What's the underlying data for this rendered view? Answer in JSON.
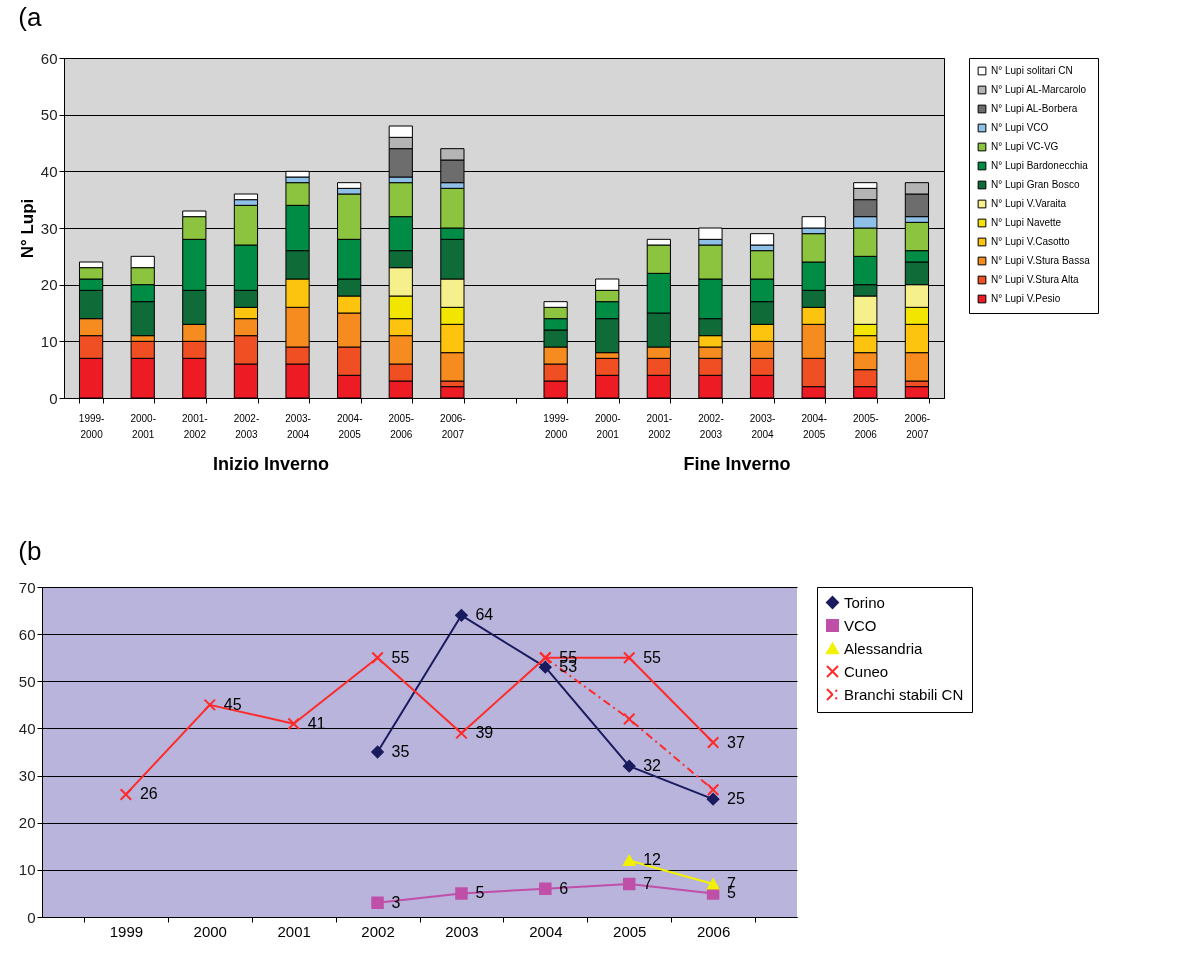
{
  "chart_data": [
    {
      "type": "bar",
      "title": "(a",
      "ylabel": "N° Lupi",
      "stacked": true,
      "legend": "right",
      "grid": "y",
      "ylim": [
        0,
        60
      ],
      "yticks": [
        0,
        10,
        20,
        30,
        40,
        50,
        60
      ],
      "categories": [
        "1999-2000",
        "2000-2001",
        "2001-2002",
        "2002-2003",
        "2003-2004",
        "2004-2005",
        "2005-2006",
        "2006-2007",
        null,
        "1999-2000",
        "2000-2001",
        "2001-2002",
        "2002-2003",
        "2003-2004",
        "2004-2005",
        "2005-2006",
        "2006-2007"
      ],
      "annotations": [
        "Inizio Inverno",
        "Fine Inverno"
      ],
      "series": [
        {
          "name": "N° Lupi V.Pesio",
          "color": "#ed1c24",
          "values": [
            7,
            7,
            7,
            6,
            6,
            4,
            3,
            2,
            null,
            3,
            4,
            4,
            4,
            4,
            2,
            2,
            2
          ]
        },
        {
          "name": "N° Lupi V.Stura Alta",
          "color": "#f04e23",
          "values": [
            4,
            3,
            3,
            5,
            3,
            5,
            3,
            1,
            null,
            3,
            3,
            3,
            3,
            3,
            5,
            3,
            1
          ]
        },
        {
          "name": "N° Lupi V.Stura Bassa",
          "color": "#f68b1f",
          "values": [
            3,
            1,
            3,
            3,
            7,
            6,
            5,
            5,
            null,
            3,
            1,
            2,
            2,
            3,
            6,
            3,
            5
          ]
        },
        {
          "name": "N° Lupi V.Casotto",
          "color": "#fcc30f",
          "values": [
            null,
            null,
            null,
            2,
            5,
            3,
            3,
            5,
            null,
            null,
            null,
            null,
            2,
            3,
            3,
            3,
            5
          ]
        },
        {
          "name": "N° Lupi Navette",
          "color": "#f2e600",
          "values": [
            null,
            null,
            null,
            null,
            null,
            null,
            4,
            3,
            null,
            null,
            null,
            null,
            null,
            null,
            null,
            2,
            3
          ]
        },
        {
          "name": "N° Lupi V.Varaita",
          "color": "#f5ef8c",
          "values": [
            null,
            null,
            null,
            null,
            null,
            null,
            5,
            5,
            null,
            null,
            null,
            null,
            null,
            null,
            null,
            5,
            4
          ]
        },
        {
          "name": "N° Lupi Gran Bosco",
          "color": "#0f6b38",
          "values": [
            5,
            6,
            6,
            3,
            5,
            3,
            3,
            7,
            null,
            3,
            6,
            6,
            3,
            4,
            3,
            2,
            4
          ]
        },
        {
          "name": "N° Lupi Bardonecchia",
          "color": "#008c45",
          "values": [
            2,
            3,
            9,
            8,
            8,
            7,
            6,
            2,
            null,
            2,
            3,
            7,
            7,
            4,
            5,
            5,
            2
          ]
        },
        {
          "name": "N° Lupi VC-VG",
          "color": "#8cc43f",
          "values": [
            2,
            3,
            4,
            7,
            4,
            8,
            6,
            7,
            null,
            2,
            2,
            5,
            6,
            5,
            5,
            5,
            5
          ]
        },
        {
          "name": "N° Lupi VCO",
          "color": "#8fc0e8",
          "values": [
            null,
            null,
            null,
            1,
            1,
            1,
            1,
            1,
            null,
            null,
            null,
            null,
            1,
            1,
            1,
            2,
            1
          ]
        },
        {
          "name": "N° Lupi AL-Borbera",
          "color": "#6d6d6d",
          "values": [
            null,
            null,
            null,
            null,
            null,
            null,
            5,
            4,
            null,
            null,
            null,
            null,
            null,
            null,
            null,
            3,
            4
          ]
        },
        {
          "name": "N° Lupi AL-Marcarolo",
          "color": "#b4b4b4",
          "values": [
            null,
            null,
            null,
            null,
            null,
            null,
            2,
            2,
            null,
            null,
            null,
            null,
            null,
            null,
            null,
            2,
            2
          ]
        },
        {
          "name": "N° Lupi solitari CN",
          "color": "#ffffff",
          "values": [
            1,
            2,
            1,
            1,
            1,
            1,
            2,
            null,
            null,
            1,
            2,
            1,
            2,
            2,
            2,
            1,
            null
          ]
        }
      ]
    },
    {
      "type": "line",
      "title": "(b",
      "legend": "right",
      "grid": "y",
      "ylim": [
        0,
        70
      ],
      "yticks": [
        0,
        10,
        20,
        30,
        40,
        50,
        60,
        70
      ],
      "categories": [
        "1999",
        "2000",
        "2001",
        "2002",
        "2003",
        "2004",
        "2005",
        "2006"
      ],
      "series": [
        {
          "name": "Torino",
          "color": "#1a1a5e",
          "marker": "diamond",
          "line_style": "solid",
          "values": [
            null,
            null,
            null,
            35,
            64,
            53,
            32,
            25
          ],
          "value_labels": [
            null,
            null,
            null,
            "35",
            "64",
            "53",
            "32",
            "25"
          ]
        },
        {
          "name": "VCO",
          "color": "#c04fa8",
          "marker": "square",
          "line_style": "solid",
          "values": [
            null,
            null,
            null,
            3,
            5,
            6,
            7,
            5
          ],
          "value_labels": [
            null,
            null,
            null,
            "3",
            "5",
            "6",
            "7",
            "5"
          ]
        },
        {
          "name": "Alessandria",
          "color": "#f2f200",
          "marker": "triangle",
          "line_style": "solid",
          "values": [
            null,
            null,
            null,
            null,
            null,
            null,
            12,
            7
          ],
          "value_labels": [
            null,
            null,
            null,
            null,
            null,
            null,
            "12",
            "7"
          ]
        },
        {
          "name": "Cuneo",
          "color": "#ff2a2a",
          "marker": "cross",
          "line_style": "solid",
          "values": [
            26,
            45,
            41,
            55,
            39,
            55,
            55,
            37
          ],
          "value_labels": [
            "26",
            "45",
            "41",
            "55",
            "39",
            "55",
            "55",
            "37"
          ]
        },
        {
          "name": "Branchi stabili CN",
          "color": "#ff2a2a",
          "marker": "cross",
          "line_style": "dashed",
          "values": [
            null,
            null,
            null,
            null,
            null,
            55,
            42,
            27
          ]
        }
      ]
    }
  ]
}
